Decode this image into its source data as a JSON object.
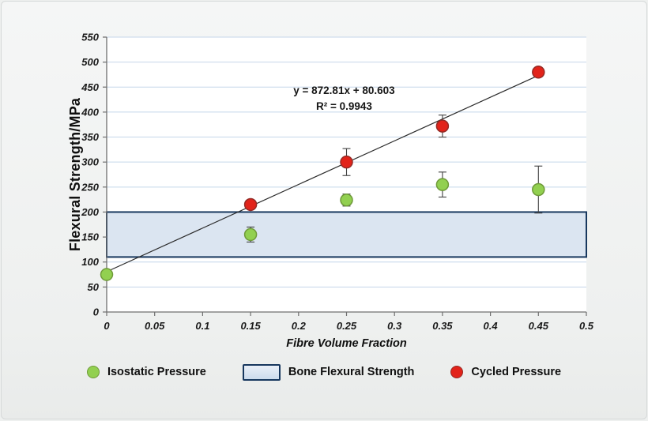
{
  "chart_data": {
    "type": "scatter",
    "title": "",
    "xlabel": "Fibre Volume Fraction",
    "ylabel": "Flexural Strength/MPa",
    "xlim": [
      0,
      0.5
    ],
    "ylim": [
      0,
      550
    ],
    "grid": {
      "horizontal": true,
      "vertical": false,
      "color": "#c4d6ea"
    },
    "xticks": [
      {
        "v": 0,
        "label": "0"
      },
      {
        "v": 0.05,
        "label": "0.05"
      },
      {
        "v": 0.1,
        "label": "0.1"
      },
      {
        "v": 0.15,
        "label": "0.15"
      },
      {
        "v": 0.2,
        "label": "0.2"
      },
      {
        "v": 0.25,
        "label": "0.25"
      },
      {
        "v": 0.3,
        "label": "0.3"
      },
      {
        "v": 0.35,
        "label": "0.35"
      },
      {
        "v": 0.4,
        "label": "0.4"
      },
      {
        "v": 0.45,
        "label": "0.45"
      },
      {
        "v": 0.5,
        "label": "0.5"
      }
    ],
    "yticks": [
      {
        "v": 0,
        "label": "0"
      },
      {
        "v": 50,
        "label": "50"
      },
      {
        "v": 100,
        "label": "100"
      },
      {
        "v": 150,
        "label": "150"
      },
      {
        "v": 200,
        "label": "200"
      },
      {
        "v": 250,
        "label": "250"
      },
      {
        "v": 300,
        "label": "300"
      },
      {
        "v": 350,
        "label": "350"
      },
      {
        "v": 400,
        "label": "400"
      },
      {
        "v": 450,
        "label": "450"
      },
      {
        "v": 500,
        "label": "500"
      },
      {
        "v": 550,
        "label": "550"
      }
    ],
    "band": {
      "label": "Bone Flexural Strength",
      "y_min": 110,
      "y_max": 200,
      "fill": "#dbe5f1",
      "stroke": "#17375e"
    },
    "trendline": {
      "slope": 872.81,
      "intercept": 80.603,
      "x_start": 0,
      "x_end": 0.456,
      "color": "#2b2b2b"
    },
    "annotation": {
      "line1": "y = 872.81x + 80.603",
      "line2": "R² = 0.9943"
    },
    "series": [
      {
        "name": "Isostatic Pressure",
        "marker": "circle",
        "fill": "#92d050",
        "stroke": "#6f9a39",
        "points": [
          {
            "x": 0,
            "y": 75,
            "err": 0
          },
          {
            "x": 0.15,
            "y": 155,
            "err": 15
          },
          {
            "x": 0.25,
            "y": 224,
            "err": 12
          },
          {
            "x": 0.35,
            "y": 255,
            "err": 25
          },
          {
            "x": 0.45,
            "y": 245,
            "err": 47
          }
        ]
      },
      {
        "name": "Cycled Pressure",
        "marker": "circle",
        "fill": "#e2231a",
        "stroke": "#942a25",
        "points": [
          {
            "x": 0.15,
            "y": 215,
            "err": 8
          },
          {
            "x": 0.25,
            "y": 300,
            "err": 27
          },
          {
            "x": 0.35,
            "y": 372,
            "err": 22
          },
          {
            "x": 0.45,
            "y": 480,
            "err": 8
          }
        ]
      }
    ],
    "legend": [
      {
        "label": "Isostatic Pressure",
        "marker": "circle",
        "fill": "#92d050",
        "stroke": "#6f9a39"
      },
      {
        "label": "Bone Flexural Strength",
        "marker": "band",
        "fill": "#dbe5f1",
        "stroke": "#17375e"
      },
      {
        "label": "Cycled Pressure",
        "marker": "circle",
        "fill": "#e2231a",
        "stroke": "#942a25"
      }
    ]
  }
}
